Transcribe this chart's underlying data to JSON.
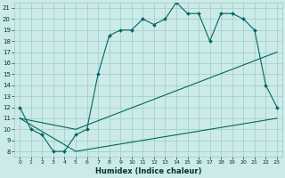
{
  "xlabel": "Humidex (Indice chaleur)",
  "xlim": [
    -0.5,
    23.5
  ],
  "ylim": [
    7.5,
    21.5
  ],
  "xticks": [
    0,
    1,
    2,
    3,
    4,
    5,
    6,
    7,
    8,
    9,
    10,
    11,
    12,
    13,
    14,
    15,
    16,
    17,
    18,
    19,
    20,
    21,
    22,
    23
  ],
  "yticks": [
    8,
    9,
    10,
    11,
    12,
    13,
    14,
    15,
    16,
    17,
    18,
    19,
    20,
    21
  ],
  "background_color": "#cceae7",
  "grid_color": "#99cccc",
  "line_color": "#006666",
  "series": [
    {
      "x": [
        0,
        1,
        2,
        3,
        4,
        5,
        6,
        7,
        8,
        9,
        10,
        11,
        12,
        13,
        14,
        15,
        16,
        17,
        18,
        19,
        20,
        21,
        22,
        23
      ],
      "y": [
        12,
        10,
        9.5,
        8,
        8,
        9.5,
        10,
        15,
        18.5,
        19,
        19,
        20,
        19.5,
        20,
        21.5,
        20.5,
        20.5,
        18,
        20.5,
        20.5,
        20,
        19,
        14,
        12
      ],
      "has_markers": true
    },
    {
      "x": [
        0,
        5,
        23
      ],
      "y": [
        11,
        10,
        17
      ],
      "has_markers": false
    },
    {
      "x": [
        0,
        5,
        23
      ],
      "y": [
        11,
        8,
        11
      ],
      "has_markers": false
    }
  ]
}
